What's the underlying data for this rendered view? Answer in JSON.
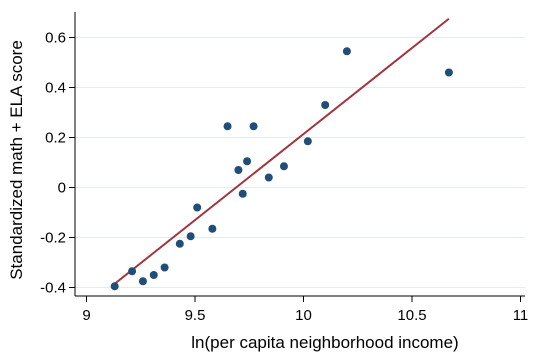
{
  "chart_data": {
    "type": "scatter",
    "xlabel": "ln(per capita neighborhood income)",
    "ylabel": "Standardized math + ELA score",
    "xlim": [
      9.0,
      11.0
    ],
    "ylim": [
      -0.42,
      0.7
    ],
    "xticks": [
      9,
      9.5,
      10,
      10.5,
      11
    ],
    "xtick_labels": [
      "9",
      "9.5",
      "10",
      "10.5",
      "11"
    ],
    "yticks": [
      -0.4,
      -0.2,
      0,
      0.2,
      0.4,
      0.6
    ],
    "ytick_labels": [
      "-0.4",
      "-0.2",
      "0",
      "0.2",
      "0.4",
      "0.6"
    ],
    "grid": true,
    "points": [
      {
        "x": 9.13,
        "y": -0.395
      },
      {
        "x": 9.21,
        "y": -0.335
      },
      {
        "x": 9.26,
        "y": -0.375
      },
      {
        "x": 9.31,
        "y": -0.35
      },
      {
        "x": 9.36,
        "y": -0.32
      },
      {
        "x": 9.43,
        "y": -0.225
      },
      {
        "x": 9.48,
        "y": -0.195
      },
      {
        "x": 9.51,
        "y": -0.08
      },
      {
        "x": 9.58,
        "y": -0.165
      },
      {
        "x": 9.65,
        "y": 0.245
      },
      {
        "x": 9.7,
        "y": 0.07
      },
      {
        "x": 9.72,
        "y": -0.025
      },
      {
        "x": 9.74,
        "y": 0.105
      },
      {
        "x": 9.77,
        "y": 0.245
      },
      {
        "x": 9.84,
        "y": 0.04
      },
      {
        "x": 9.91,
        "y": 0.085
      },
      {
        "x": 10.02,
        "y": 0.185
      },
      {
        "x": 10.1,
        "y": 0.33
      },
      {
        "x": 10.2,
        "y": 0.545
      },
      {
        "x": 10.67,
        "y": 0.46
      }
    ],
    "fit_line": {
      "x": [
        9.13,
        10.67
      ],
      "y": [
        -0.385,
        0.675
      ]
    },
    "colors": {
      "points": "#1f4e79",
      "fit_line": "#a0373f",
      "grid": "#e3ecf1"
    }
  }
}
